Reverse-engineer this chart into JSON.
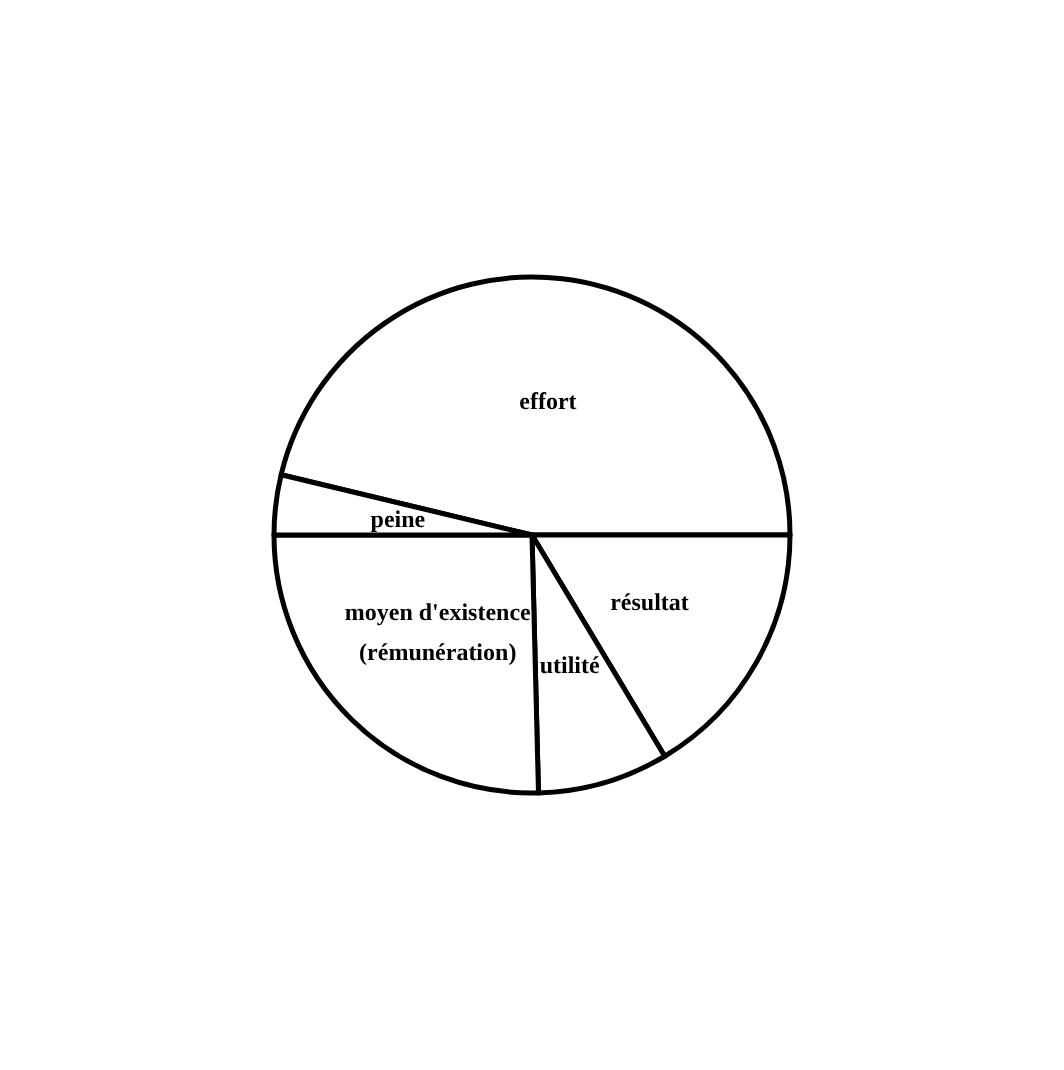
{
  "chart_data": {
    "type": "pie",
    "categories": [
      "effort",
      "résultat",
      "utilité",
      "moyen d'existence\n(rémunération)",
      "peine"
    ],
    "values": [
      46.25,
      16.4,
      8.2,
      25.4,
      3.75
    ],
    "colors": [
      "#ffffff",
      "#ffffff",
      "#ffffff",
      "#ffffff",
      "#ffffff"
    ],
    "legend": false
  }
}
